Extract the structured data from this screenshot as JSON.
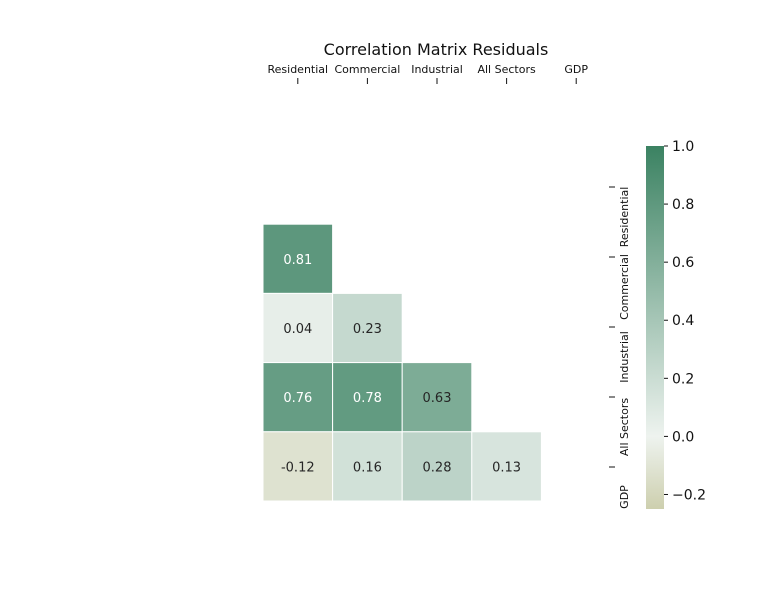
{
  "chart_data": {
    "type": "heatmap",
    "title": "Correlation Matrix Residuals",
    "x_labels": [
      "Residential",
      "Commercial",
      "Industrial",
      "All Sectors",
      "GDP"
    ],
    "y_labels": [
      "Residential",
      "Commercial",
      "Industrial",
      "All Sectors",
      "GDP"
    ],
    "values": [
      [
        null,
        null,
        null,
        null,
        null
      ],
      [
        0.81,
        null,
        null,
        null,
        null
      ],
      [
        0.04,
        0.23,
        null,
        null,
        null
      ],
      [
        0.76,
        0.78,
        0.63,
        null,
        null
      ],
      [
        -0.12,
        0.16,
        0.28,
        0.13,
        null
      ]
    ],
    "cell_labels": [
      [
        null,
        null,
        null,
        null,
        null
      ],
      [
        "0.81",
        null,
        null,
        null,
        null
      ],
      [
        "0.04",
        "0.23",
        null,
        null,
        null
      ],
      [
        "0.76",
        "0.78",
        "0.63",
        null,
        null
      ],
      [
        "-0.12",
        "0.16",
        "0.28",
        "0.13",
        null
      ]
    ],
    "mask": "upper-triangle-including-diagonal",
    "x_axis_position": "top",
    "y_axis_position": "right",
    "colorbar": {
      "vmin": -0.25,
      "vmax": 1.0,
      "ticks": [
        1.0,
        0.8,
        0.6,
        0.4,
        0.2,
        0.0,
        -0.2
      ],
      "tick_labels": [
        "1.0",
        "0.8",
        "0.6",
        "0.4",
        "0.2",
        "0.0",
        "−0.2"
      ],
      "colors": {
        "low": "#cdcfae",
        "mid": "#eef3ef",
        "high": "#3b8262"
      }
    },
    "grid": false
  }
}
